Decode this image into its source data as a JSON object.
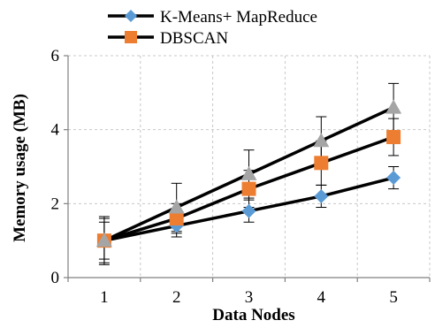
{
  "chart_data": {
    "type": "line",
    "title": "",
    "xlabel": "Data Nodes",
    "ylabel": "Memory usage (MB)",
    "x": [
      1,
      2,
      3,
      4,
      5
    ],
    "xlim": [
      0.5,
      5.5
    ],
    "ylim": [
      0,
      6
    ],
    "yticks": [
      0,
      2,
      4,
      6
    ],
    "xticks": [
      1,
      2,
      3,
      4,
      5
    ],
    "grid": "dashed",
    "legend_position": "top",
    "series": [
      {
        "name": "K-Means+ MapReduce",
        "marker": "diamond-icon",
        "color": "#5b9bd5",
        "values": [
          1.0,
          1.4,
          1.8,
          2.2,
          2.7
        ],
        "errors": [
          0.6,
          0.3,
          0.3,
          0.3,
          0.3
        ]
      },
      {
        "name": "DBSCAN",
        "marker": "square-icon",
        "color": "#ed7d31",
        "values": [
          1.0,
          1.6,
          2.4,
          3.1,
          3.8
        ],
        "errors": [
          0.5,
          0.4,
          0.5,
          0.6,
          0.5
        ]
      },
      {
        "name": "",
        "marker": "triangle-icon",
        "color": "#a5a5a5",
        "values": [
          1.0,
          1.9,
          2.8,
          3.7,
          4.6
        ],
        "errors": [
          0.65,
          0.65,
          0.65,
          0.65,
          0.65
        ]
      }
    ]
  }
}
